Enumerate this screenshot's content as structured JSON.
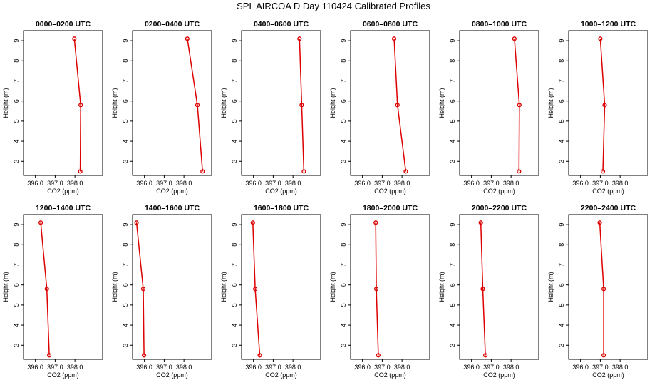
{
  "figure": {
    "title": "SPL AIRCOA D  Day 110424  Calibrated Profiles"
  },
  "colors": {
    "series": "#dd0000",
    "axis": "#000000"
  },
  "chart_data": [
    {
      "type": "line",
      "title": "0000–0200 UTC",
      "xlabel": "CO2 (ppm)",
      "ylabel": "Height (m)",
      "xlim": [
        395.4,
        399.4
      ],
      "ylim": [
        2.3,
        9.5
      ],
      "xticks": [
        396.0,
        397.0,
        398.0
      ],
      "xtick_labels": [
        "396.0",
        "397.0",
        "398.0"
      ],
      "yticks": [
        3,
        4,
        5,
        6,
        7,
        8,
        9
      ],
      "ytick_labels": [
        "3",
        "4",
        "5",
        "6",
        "7",
        "8",
        "9"
      ],
      "points": [
        {
          "x": 397.97,
          "y": 9.1
        },
        {
          "x": 398.29,
          "y": 5.8
        },
        {
          "x": 398.27,
          "y": 2.5
        }
      ]
    },
    {
      "type": "line",
      "title": "0200–0400 UTC",
      "xlabel": "CO2 (ppm)",
      "ylabel": "Height (m)",
      "xlim": [
        395.4,
        399.4
      ],
      "ylim": [
        2.3,
        9.5
      ],
      "xticks": [
        396.0,
        397.0,
        398.0
      ],
      "xtick_labels": [
        "396.0",
        "397.0",
        "398.0"
      ],
      "yticks": [
        3,
        4,
        5,
        6,
        7,
        8,
        9
      ],
      "ytick_labels": [
        "3",
        "4",
        "5",
        "6",
        "7",
        "8",
        "9"
      ],
      "points": [
        {
          "x": 398.17,
          "y": 9.1
        },
        {
          "x": 398.68,
          "y": 5.8
        },
        {
          "x": 398.94,
          "y": 2.5
        }
      ]
    },
    {
      "type": "line",
      "title": "0400–0600 UTC",
      "xlabel": "CO2 (ppm)",
      "ylabel": "Height (m)",
      "xlim": [
        395.4,
        399.4
      ],
      "ylim": [
        2.3,
        9.5
      ],
      "xticks": [
        396.0,
        397.0,
        398.0
      ],
      "xtick_labels": [
        "396.0",
        "397.0",
        "398.0"
      ],
      "yticks": [
        3,
        4,
        5,
        6,
        7,
        8,
        9
      ],
      "ytick_labels": [
        "3",
        "4",
        "5",
        "6",
        "7",
        "8",
        "9"
      ],
      "points": [
        {
          "x": 398.33,
          "y": 9.1
        },
        {
          "x": 398.44,
          "y": 5.8
        },
        {
          "x": 398.55,
          "y": 2.5
        }
      ]
    },
    {
      "type": "line",
      "title": "0600–0800 UTC",
      "xlabel": "CO2 (ppm)",
      "ylabel": "Height (m)",
      "xlim": [
        395.4,
        399.4
      ],
      "ylim": [
        2.3,
        9.5
      ],
      "xticks": [
        396.0,
        397.0,
        398.0
      ],
      "xtick_labels": [
        "396.0",
        "397.0",
        "398.0"
      ],
      "yticks": [
        3,
        4,
        5,
        6,
        7,
        8,
        9
      ],
      "ytick_labels": [
        "3",
        "4",
        "5",
        "6",
        "7",
        "8",
        "9"
      ],
      "points": [
        {
          "x": 397.6,
          "y": 9.1
        },
        {
          "x": 397.77,
          "y": 5.8
        },
        {
          "x": 398.19,
          "y": 2.5
        }
      ]
    },
    {
      "type": "line",
      "title": "0800–1000 UTC",
      "xlabel": "CO2 (ppm)",
      "ylabel": "Height (m)",
      "xlim": [
        395.4,
        399.4
      ],
      "ylim": [
        2.3,
        9.5
      ],
      "xticks": [
        396.0,
        397.0,
        398.0
      ],
      "xtick_labels": [
        "396.0",
        "397.0",
        "398.0"
      ],
      "yticks": [
        3,
        4,
        5,
        6,
        7,
        8,
        9
      ],
      "ytick_labels": [
        "3",
        "4",
        "5",
        "6",
        "7",
        "8",
        "9"
      ],
      "points": [
        {
          "x": 398.17,
          "y": 9.1
        },
        {
          "x": 398.42,
          "y": 5.8
        },
        {
          "x": 398.4,
          "y": 2.5
        }
      ]
    },
    {
      "type": "line",
      "title": "1000–1200 UTC",
      "xlabel": "CO2 (ppm)",
      "ylabel": "Height (m)",
      "xlim": [
        395.4,
        399.4
      ],
      "ylim": [
        2.3,
        9.5
      ],
      "xticks": [
        396.0,
        397.0,
        398.0
      ],
      "xtick_labels": [
        "396.0",
        "397.0",
        "398.0"
      ],
      "yticks": [
        3,
        4,
        5,
        6,
        7,
        8,
        9
      ],
      "ytick_labels": [
        "3",
        "4",
        "5",
        "6",
        "7",
        "8",
        "9"
      ],
      "points": [
        {
          "x": 397.0,
          "y": 9.1
        },
        {
          "x": 397.22,
          "y": 5.8
        },
        {
          "x": 397.13,
          "y": 2.5
        }
      ]
    },
    {
      "type": "line",
      "title": "1200–1400 UTC",
      "xlabel": "CO2 (ppm)",
      "ylabel": "Height (m)",
      "xlim": [
        395.4,
        399.4
      ],
      "ylim": [
        2.3,
        9.5
      ],
      "xticks": [
        396.0,
        397.0,
        398.0
      ],
      "xtick_labels": [
        "396.0",
        "397.0",
        "398.0"
      ],
      "yticks": [
        3,
        4,
        5,
        6,
        7,
        8,
        9
      ],
      "ytick_labels": [
        "3",
        "4",
        "5",
        "6",
        "7",
        "8",
        "9"
      ],
      "points": [
        {
          "x": 396.27,
          "y": 9.1
        },
        {
          "x": 396.58,
          "y": 5.8
        },
        {
          "x": 396.7,
          "y": 2.5
        }
      ]
    },
    {
      "type": "line",
      "title": "1400–1600 UTC",
      "xlabel": "CO2 (ppm)",
      "ylabel": "Height (m)",
      "xlim": [
        395.4,
        399.4
      ],
      "ylim": [
        2.3,
        9.5
      ],
      "xticks": [
        396.0,
        397.0,
        398.0
      ],
      "xtick_labels": [
        "396.0",
        "397.0",
        "398.0"
      ],
      "yticks": [
        3,
        4,
        5,
        6,
        7,
        8,
        9
      ],
      "ytick_labels": [
        "3",
        "4",
        "5",
        "6",
        "7",
        "8",
        "9"
      ],
      "points": [
        {
          "x": 395.6,
          "y": 9.1
        },
        {
          "x": 395.94,
          "y": 5.8
        },
        {
          "x": 395.98,
          "y": 2.5
        }
      ]
    },
    {
      "type": "line",
      "title": "1600–1800 UTC",
      "xlabel": "CO2 (ppm)",
      "ylabel": "Height (m)",
      "xlim": [
        395.4,
        399.4
      ],
      "ylim": [
        2.3,
        9.5
      ],
      "xticks": [
        396.0,
        397.0,
        398.0
      ],
      "xtick_labels": [
        "396.0",
        "397.0",
        "398.0"
      ],
      "yticks": [
        3,
        4,
        5,
        6,
        7,
        8,
        9
      ],
      "ytick_labels": [
        "3",
        "4",
        "5",
        "6",
        "7",
        "8",
        "9"
      ],
      "points": [
        {
          "x": 395.97,
          "y": 9.1
        },
        {
          "x": 396.09,
          "y": 5.8
        },
        {
          "x": 396.32,
          "y": 2.5
        }
      ]
    },
    {
      "type": "line",
      "title": "1800–2000 UTC",
      "xlabel": "CO2 (ppm)",
      "ylabel": "Height (m)",
      "xlim": [
        395.4,
        399.4
      ],
      "ylim": [
        2.3,
        9.5
      ],
      "xticks": [
        396.0,
        397.0,
        398.0
      ],
      "xtick_labels": [
        "396.0",
        "397.0",
        "398.0"
      ],
      "yticks": [
        3,
        4,
        5,
        6,
        7,
        8,
        9
      ],
      "ytick_labels": [
        "3",
        "4",
        "5",
        "6",
        "7",
        "8",
        "9"
      ],
      "points": [
        {
          "x": 396.67,
          "y": 9.1
        },
        {
          "x": 396.7,
          "y": 5.8
        },
        {
          "x": 396.8,
          "y": 2.5
        }
      ]
    },
    {
      "type": "line",
      "title": "2000–2200 UTC",
      "xlabel": "CO2 (ppm)",
      "ylabel": "Height (m)",
      "xlim": [
        395.4,
        399.4
      ],
      "ylim": [
        2.3,
        9.5
      ],
      "xticks": [
        396.0,
        397.0,
        398.0
      ],
      "xtick_labels": [
        "396.0",
        "397.0",
        "398.0"
      ],
      "yticks": [
        3,
        4,
        5,
        6,
        7,
        8,
        9
      ],
      "ytick_labels": [
        "3",
        "4",
        "5",
        "6",
        "7",
        "8",
        "9"
      ],
      "points": [
        {
          "x": 396.47,
          "y": 9.1
        },
        {
          "x": 396.57,
          "y": 5.8
        },
        {
          "x": 396.7,
          "y": 2.5
        }
      ]
    },
    {
      "type": "line",
      "title": "2200–2400 UTC",
      "xlabel": "CO2 (ppm)",
      "ylabel": "Height (m)",
      "xlim": [
        395.4,
        399.4
      ],
      "ylim": [
        2.3,
        9.5
      ],
      "xticks": [
        396.0,
        397.0,
        398.0
      ],
      "xtick_labels": [
        "396.0",
        "397.0",
        "398.0"
      ],
      "yticks": [
        3,
        4,
        5,
        6,
        7,
        8,
        9
      ],
      "ytick_labels": [
        "3",
        "4",
        "5",
        "6",
        "7",
        "8",
        "9"
      ],
      "points": [
        {
          "x": 396.97,
          "y": 9.1
        },
        {
          "x": 397.17,
          "y": 5.8
        },
        {
          "x": 397.17,
          "y": 2.5
        }
      ]
    }
  ]
}
